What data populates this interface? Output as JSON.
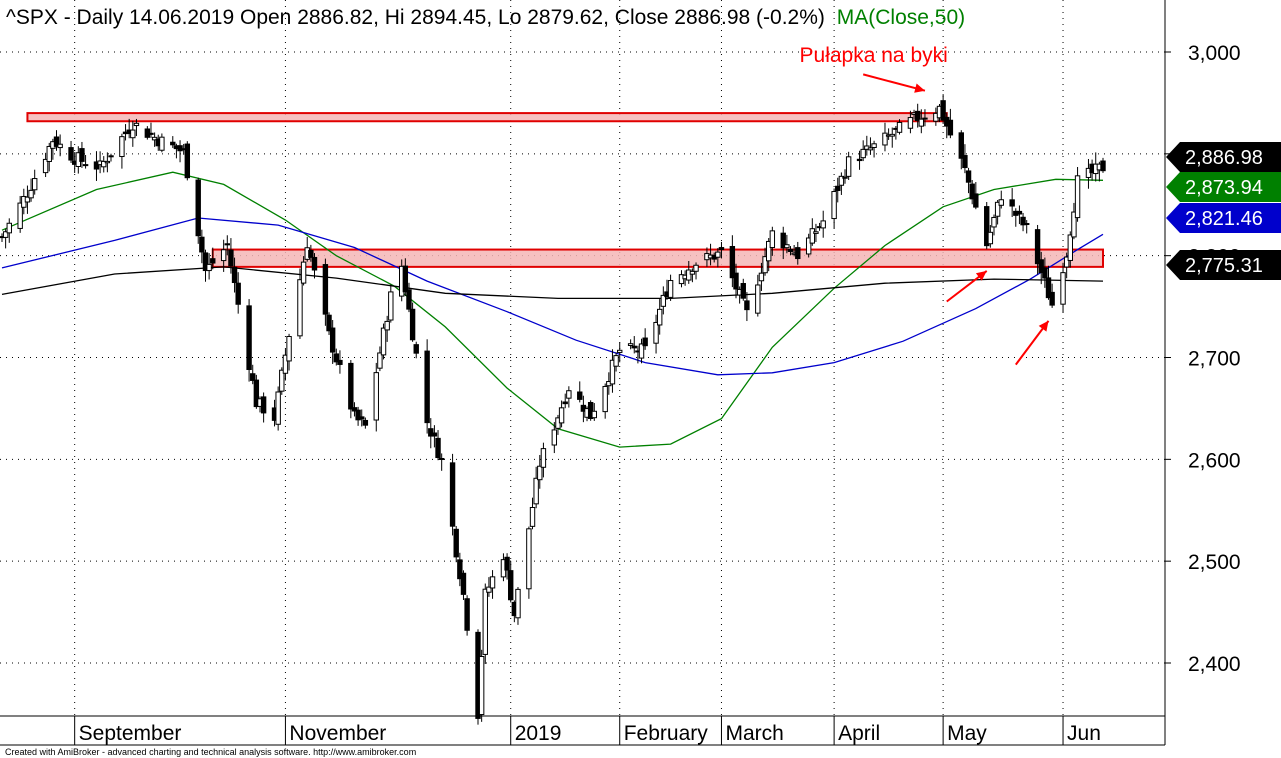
{
  "title": {
    "symbol_info": "^SPX - Daily 14.06.2019 Open 2886.82, Hi 2894.45, Lo 2879.62, Close 2886.98 (-0.2%)",
    "ma_label": "MA(Close,50)"
  },
  "footer": "Created with AmiBroker - advanced charting and technical analysis software. http://www.amibroker.com",
  "colors": {
    "ma50": "#008000",
    "ma100": "#0000cc",
    "ma200": "#000000",
    "annotation": "#ff0000",
    "zone_fill": "#f4b6b6",
    "grid": "#000000"
  },
  "chart_data": {
    "type": "candlestick",
    "title": "^SPX - Daily 14.06.2019",
    "ylim": [
      2340,
      3025
    ],
    "y_ticks": [
      {
        "value": 2400,
        "label": "2,400"
      },
      {
        "value": 2500,
        "label": "2,500"
      },
      {
        "value": 2600,
        "label": "2,600"
      },
      {
        "value": 2700,
        "label": "2,700"
      },
      {
        "value": 2800,
        "label": "2,800"
      },
      {
        "value": 2900,
        "label": "2,900"
      },
      {
        "value": 3000,
        "label": "3,000"
      }
    ],
    "x_labels": [
      {
        "label": "September",
        "date": "2018-09-04"
      },
      {
        "label": "November",
        "date": "2018-11-01"
      },
      {
        "label": "2019",
        "date": "2019-01-02"
      },
      {
        "label": "February",
        "date": "2019-02-01"
      },
      {
        "label": "March",
        "date": "2019-03-01"
      },
      {
        "label": "April",
        "date": "2019-04-01"
      },
      {
        "label": "May",
        "date": "2019-05-01"
      },
      {
        "label": "Jun",
        "date": "2019-06-03"
      }
    ],
    "x_range": [
      "2018-08-15",
      "2019-06-14"
    ],
    "close_anchors": [
      [
        "2018-08-15",
        2818
      ],
      [
        "2018-08-22",
        2862
      ],
      [
        "2018-08-29",
        2914
      ],
      [
        "2018-09-04",
        2896
      ],
      [
        "2018-09-11",
        2887
      ],
      [
        "2018-09-20",
        2930
      ],
      [
        "2018-09-27",
        2914
      ],
      [
        "2018-10-04",
        2902
      ],
      [
        "2018-10-10",
        2785
      ],
      [
        "2018-10-16",
        2810
      ],
      [
        "2018-10-24",
        2656
      ],
      [
        "2018-10-29",
        2641
      ],
      [
        "2018-11-02",
        2723
      ],
      [
        "2018-11-07",
        2813
      ],
      [
        "2018-11-13",
        2722
      ],
      [
        "2018-11-20",
        2641
      ],
      [
        "2018-11-23",
        2632
      ],
      [
        "2018-11-30",
        2760
      ],
      [
        "2018-12-03",
        2790
      ],
      [
        "2018-12-10",
        2637
      ],
      [
        "2018-12-14",
        2599
      ],
      [
        "2018-12-20",
        2467
      ],
      [
        "2018-12-24",
        2351
      ],
      [
        "2018-12-26",
        2467
      ],
      [
        "2018-12-31",
        2507
      ],
      [
        "2019-01-03",
        2448
      ],
      [
        "2019-01-10",
        2596
      ],
      [
        "2019-01-18",
        2671
      ],
      [
        "2019-01-24",
        2643
      ],
      [
        "2019-02-01",
        2707
      ],
      [
        "2019-02-08",
        2707
      ],
      [
        "2019-02-15",
        2776
      ],
      [
        "2019-02-22",
        2793
      ],
      [
        "2019-03-01",
        2803
      ],
      [
        "2019-03-08",
        2743
      ],
      [
        "2019-03-15",
        2822
      ],
      [
        "2019-03-22",
        2801
      ],
      [
        "2019-03-29",
        2834
      ],
      [
        "2019-04-05",
        2892
      ],
      [
        "2019-04-12",
        2907
      ],
      [
        "2019-04-23",
        2934
      ],
      [
        "2019-04-30",
        2945
      ],
      [
        "2019-05-07",
        2884
      ],
      [
        "2019-05-13",
        2811
      ],
      [
        "2019-05-17",
        2860
      ],
      [
        "2019-05-24",
        2826
      ],
      [
        "2019-05-31",
        2752
      ],
      [
        "2019-06-04",
        2803
      ],
      [
        "2019-06-07",
        2873
      ],
      [
        "2019-06-14",
        2887
      ]
    ],
    "series": [
      {
        "name": "MA(Close,50)",
        "style": "line",
        "color": "#008000",
        "points": [
          [
            "2018-08-15",
            2825
          ],
          [
            "2018-09-10",
            2865
          ],
          [
            "2018-10-01",
            2882
          ],
          [
            "2018-10-15",
            2870
          ],
          [
            "2018-11-01",
            2835
          ],
          [
            "2018-11-15",
            2800
          ],
          [
            "2018-12-01",
            2770
          ],
          [
            "2018-12-15",
            2730
          ],
          [
            "2019-01-01",
            2670
          ],
          [
            "2019-01-15",
            2630
          ],
          [
            "2019-02-01",
            2612
          ],
          [
            "2019-02-15",
            2615
          ],
          [
            "2019-03-01",
            2640
          ],
          [
            "2019-03-15",
            2710
          ],
          [
            "2019-04-01",
            2768
          ],
          [
            "2019-04-15",
            2810
          ],
          [
            "2019-05-01",
            2848
          ],
          [
            "2019-05-15",
            2865
          ],
          [
            "2019-06-01",
            2875
          ],
          [
            "2019-06-14",
            2874
          ]
        ]
      },
      {
        "name": "MA(Close,100)",
        "style": "line",
        "color": "#0000cc",
        "points": [
          [
            "2018-08-15",
            2788
          ],
          [
            "2018-09-15",
            2815
          ],
          [
            "2018-10-08",
            2837
          ],
          [
            "2018-10-30",
            2830
          ],
          [
            "2018-11-20",
            2808
          ],
          [
            "2018-12-10",
            2775
          ],
          [
            "2019-01-01",
            2745
          ],
          [
            "2019-01-20",
            2717
          ],
          [
            "2019-02-08",
            2695
          ],
          [
            "2019-02-28",
            2683
          ],
          [
            "2019-03-15",
            2685
          ],
          [
            "2019-04-01",
            2695
          ],
          [
            "2019-04-20",
            2716
          ],
          [
            "2019-05-10",
            2748
          ],
          [
            "2019-05-25",
            2777
          ],
          [
            "2019-06-07",
            2806
          ],
          [
            "2019-06-14",
            2821
          ]
        ]
      },
      {
        "name": "MA(Close,200)",
        "style": "line",
        "color": "#000000",
        "points": [
          [
            "2018-08-15",
            2762
          ],
          [
            "2018-09-15",
            2782
          ],
          [
            "2018-10-15",
            2789
          ],
          [
            "2018-11-15",
            2778
          ],
          [
            "2018-12-15",
            2763
          ],
          [
            "2019-01-15",
            2758
          ],
          [
            "2019-02-15",
            2758
          ],
          [
            "2019-03-15",
            2763
          ],
          [
            "2019-04-15",
            2773
          ],
          [
            "2019-05-15",
            2777
          ],
          [
            "2019-06-14",
            2775
          ]
        ]
      }
    ],
    "value_badges": [
      {
        "label": "2,886.98",
        "value": 2886.98,
        "bg": "#000000"
      },
      {
        "label": "2,873.94",
        "value": 2873.94,
        "bg": "#008000"
      },
      {
        "label": "2,821.46",
        "value": 2821.46,
        "bg": "#0000cc"
      },
      {
        "label": "2,775.31",
        "value": 2775.31,
        "bg": "#000000"
      }
    ],
    "zones": [
      {
        "from": "2018-08-22",
        "to": "2019-05-02",
        "low": 2932,
        "high": 2940
      },
      {
        "from": "2018-10-12",
        "to": "2019-06-14",
        "low": 2789,
        "high": 2806
      }
    ],
    "annotations": [
      {
        "text": "Pułapka na byki",
        "date": "2019-04-08",
        "value": 2990
      }
    ],
    "arrows": [
      {
        "from": [
          "2019-04-09",
          2978
        ],
        "to": [
          "2019-04-26",
          2962
        ]
      },
      {
        "from": [
          "2019-05-02",
          2755
        ],
        "to": [
          "2019-05-13",
          2785
        ]
      },
      {
        "from": [
          "2019-05-21",
          2693
        ],
        "to": [
          "2019-05-30",
          2736
        ]
      }
    ]
  }
}
